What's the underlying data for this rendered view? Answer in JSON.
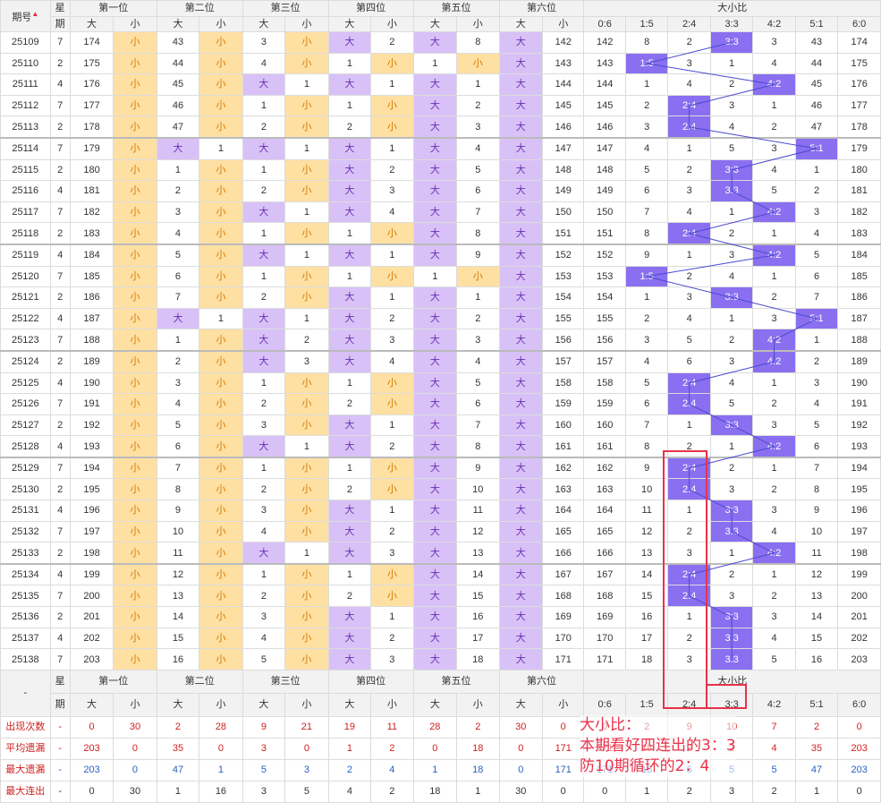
{
  "header": {
    "period_label": "期号",
    "week_label_top": "星",
    "week_label_bottom": "期",
    "groups": [
      "第一位",
      "第二位",
      "第三位",
      "第四位",
      "第五位",
      "第六位",
      "大小比"
    ],
    "big": "大",
    "small": "小",
    "ratios": [
      "0:6",
      "1:5",
      "2:4",
      "3:3",
      "4:2",
      "5:1",
      "6:0"
    ],
    "dash": "-"
  },
  "colors": {
    "big_bg": "#d8c1f7",
    "small_bg": "#ffe0a3",
    "hit_bg": "#8a6ff0",
    "note": "#e8324a"
  },
  "rows": [
    {
      "p": "25109",
      "w": "7",
      "pos": [
        [
          "s",
          174
        ],
        [
          "s",
          43
        ],
        [
          "s",
          3
        ],
        [
          "b",
          2
        ],
        [
          "b",
          8
        ],
        [
          "b",
          142
        ]
      ],
      "r": {
        "v": 3,
        "miss": [
          142,
          8,
          2,
          0,
          3,
          43,
          174
        ]
      }
    },
    {
      "p": "25110",
      "w": "2",
      "pos": [
        [
          "s",
          175
        ],
        [
          "s",
          44
        ],
        [
          "s",
          4
        ],
        [
          "s",
          1
        ],
        [
          "s",
          1
        ],
        [
          "b",
          143
        ]
      ],
      "r": {
        "v": 1,
        "miss": [
          143,
          0,
          3,
          1,
          4,
          44,
          175
        ]
      }
    },
    {
      "p": "25111",
      "w": "4",
      "pos": [
        [
          "s",
          176
        ],
        [
          "s",
          45
        ],
        [
          "b",
          1
        ],
        [
          "b",
          1
        ],
        [
          "b",
          1
        ],
        [
          "b",
          144
        ]
      ],
      "r": {
        "v": 4,
        "miss": [
          144,
          1,
          4,
          2,
          0,
          45,
          176
        ]
      }
    },
    {
      "p": "25112",
      "w": "7",
      "pos": [
        [
          "s",
          177
        ],
        [
          "s",
          46
        ],
        [
          "s",
          1
        ],
        [
          "s",
          1
        ],
        [
          "b",
          2
        ],
        [
          "b",
          145
        ]
      ],
      "r": {
        "v": 2,
        "miss": [
          145,
          2,
          0,
          3,
          1,
          46,
          177
        ]
      }
    },
    {
      "p": "25113",
      "w": "2",
      "pos": [
        [
          "s",
          178
        ],
        [
          "s",
          47
        ],
        [
          "s",
          2
        ],
        [
          "s",
          2
        ],
        [
          "b",
          3
        ],
        [
          "b",
          146
        ]
      ],
      "r": {
        "v": 2,
        "miss": [
          146,
          3,
          0,
          4,
          2,
          47,
          178
        ]
      }
    },
    {
      "p": "25114",
      "w": "7",
      "pos": [
        [
          "s",
          179
        ],
        [
          "b",
          1
        ],
        [
          "b",
          1
        ],
        [
          "b",
          1
        ],
        [
          "b",
          4
        ],
        [
          "b",
          147
        ]
      ],
      "r": {
        "v": 5,
        "miss": [
          147,
          4,
          1,
          5,
          3,
          0,
          179
        ]
      }
    },
    {
      "p": "25115",
      "w": "2",
      "pos": [
        [
          "s",
          180
        ],
        [
          "s",
          1
        ],
        [
          "s",
          1
        ],
        [
          "b",
          2
        ],
        [
          "b",
          5
        ],
        [
          "b",
          148
        ]
      ],
      "r": {
        "v": 3,
        "miss": [
          148,
          5,
          2,
          0,
          4,
          1,
          180
        ]
      }
    },
    {
      "p": "25116",
      "w": "4",
      "pos": [
        [
          "s",
          181
        ],
        [
          "s",
          2
        ],
        [
          "s",
          2
        ],
        [
          "b",
          3
        ],
        [
          "b",
          6
        ],
        [
          "b",
          149
        ]
      ],
      "r": {
        "v": 3,
        "miss": [
          149,
          6,
          3,
          0,
          5,
          2,
          181
        ]
      }
    },
    {
      "p": "25117",
      "w": "7",
      "pos": [
        [
          "s",
          182
        ],
        [
          "s",
          3
        ],
        [
          "b",
          1
        ],
        [
          "b",
          4
        ],
        [
          "b",
          7
        ],
        [
          "b",
          150
        ]
      ],
      "r": {
        "v": 4,
        "miss": [
          150,
          7,
          4,
          1,
          0,
          3,
          182
        ]
      }
    },
    {
      "p": "25118",
      "w": "2",
      "pos": [
        [
          "s",
          183
        ],
        [
          "s",
          4
        ],
        [
          "s",
          1
        ],
        [
          "s",
          1
        ],
        [
          "b",
          8
        ],
        [
          "b",
          151
        ]
      ],
      "r": {
        "v": 2,
        "miss": [
          151,
          8,
          0,
          2,
          1,
          4,
          183
        ]
      }
    },
    {
      "p": "25119",
      "w": "4",
      "pos": [
        [
          "s",
          184
        ],
        [
          "s",
          5
        ],
        [
          "b",
          1
        ],
        [
          "b",
          1
        ],
        [
          "b",
          9
        ],
        [
          "b",
          152
        ]
      ],
      "r": {
        "v": 4,
        "miss": [
          152,
          9,
          1,
          3,
          0,
          5,
          184
        ]
      }
    },
    {
      "p": "25120",
      "w": "7",
      "pos": [
        [
          "s",
          185
        ],
        [
          "s",
          6
        ],
        [
          "s",
          1
        ],
        [
          "s",
          1
        ],
        [
          "s",
          1
        ],
        [
          "b",
          153
        ]
      ],
      "r": {
        "v": 1,
        "miss": [
          153,
          0,
          2,
          4,
          1,
          6,
          185
        ]
      }
    },
    {
      "p": "25121",
      "w": "2",
      "pos": [
        [
          "s",
          186
        ],
        [
          "s",
          7
        ],
        [
          "s",
          2
        ],
        [
          "b",
          1
        ],
        [
          "b",
          1
        ],
        [
          "b",
          154
        ]
      ],
      "r": {
        "v": 3,
        "miss": [
          154,
          1,
          3,
          0,
          2,
          7,
          186
        ]
      }
    },
    {
      "p": "25122",
      "w": "4",
      "pos": [
        [
          "s",
          187
        ],
        [
          "b",
          1
        ],
        [
          "b",
          1
        ],
        [
          "b",
          2
        ],
        [
          "b",
          2
        ],
        [
          "b",
          155
        ]
      ],
      "r": {
        "v": 5,
        "miss": [
          155,
          2,
          4,
          1,
          3,
          0,
          187
        ]
      }
    },
    {
      "p": "25123",
      "w": "7",
      "pos": [
        [
          "s",
          188
        ],
        [
          "s",
          1
        ],
        [
          "b",
          2
        ],
        [
          "b",
          3
        ],
        [
          "b",
          3
        ],
        [
          "b",
          156
        ]
      ],
      "r": {
        "v": 4,
        "miss": [
          156,
          3,
          5,
          2,
          0,
          1,
          188
        ]
      }
    },
    {
      "p": "25124",
      "w": "2",
      "pos": [
        [
          "s",
          189
        ],
        [
          "s",
          2
        ],
        [
          "b",
          3
        ],
        [
          "b",
          4
        ],
        [
          "b",
          4
        ],
        [
          "b",
          157
        ]
      ],
      "r": {
        "v": 4,
        "miss": [
          157,
          4,
          6,
          3,
          0,
          2,
          189
        ]
      }
    },
    {
      "p": "25125",
      "w": "4",
      "pos": [
        [
          "s",
          190
        ],
        [
          "s",
          3
        ],
        [
          "s",
          1
        ],
        [
          "s",
          1
        ],
        [
          "b",
          5
        ],
        [
          "b",
          158
        ]
      ],
      "r": {
        "v": 2,
        "miss": [
          158,
          5,
          0,
          4,
          1,
          3,
          190
        ]
      }
    },
    {
      "p": "25126",
      "w": "7",
      "pos": [
        [
          "s",
          191
        ],
        [
          "s",
          4
        ],
        [
          "s",
          2
        ],
        [
          "s",
          2
        ],
        [
          "b",
          6
        ],
        [
          "b",
          159
        ]
      ],
      "r": {
        "v": 2,
        "miss": [
          159,
          6,
          0,
          5,
          2,
          4,
          191
        ]
      }
    },
    {
      "p": "25127",
      "w": "2",
      "pos": [
        [
          "s",
          192
        ],
        [
          "s",
          5
        ],
        [
          "s",
          3
        ],
        [
          "b",
          1
        ],
        [
          "b",
          7
        ],
        [
          "b",
          160
        ]
      ],
      "r": {
        "v": 3,
        "miss": [
          160,
          7,
          1,
          0,
          3,
          5,
          192
        ]
      }
    },
    {
      "p": "25128",
      "w": "4",
      "pos": [
        [
          "s",
          193
        ],
        [
          "s",
          6
        ],
        [
          "b",
          1
        ],
        [
          "b",
          2
        ],
        [
          "b",
          8
        ],
        [
          "b",
          161
        ]
      ],
      "r": {
        "v": 4,
        "miss": [
          161,
          8,
          2,
          1,
          0,
          6,
          193
        ]
      }
    },
    {
      "p": "25129",
      "w": "7",
      "pos": [
        [
          "s",
          194
        ],
        [
          "s",
          7
        ],
        [
          "s",
          1
        ],
        [
          "s",
          1
        ],
        [
          "b",
          9
        ],
        [
          "b",
          162
        ]
      ],
      "r": {
        "v": 2,
        "miss": [
          162,
          9,
          0,
          2,
          1,
          7,
          194
        ]
      }
    },
    {
      "p": "25130",
      "w": "2",
      "pos": [
        [
          "s",
          195
        ],
        [
          "s",
          8
        ],
        [
          "s",
          2
        ],
        [
          "s",
          2
        ],
        [
          "b",
          10
        ],
        [
          "b",
          163
        ]
      ],
      "r": {
        "v": 2,
        "miss": [
          163,
          10,
          0,
          3,
          2,
          8,
          195
        ]
      }
    },
    {
      "p": "25131",
      "w": "4",
      "pos": [
        [
          "s",
          196
        ],
        [
          "s",
          9
        ],
        [
          "s",
          3
        ],
        [
          "b",
          1
        ],
        [
          "b",
          11
        ],
        [
          "b",
          164
        ]
      ],
      "r": {
        "v": 3,
        "miss": [
          164,
          11,
          1,
          0,
          3,
          9,
          196
        ]
      }
    },
    {
      "p": "25132",
      "w": "7",
      "pos": [
        [
          "s",
          197
        ],
        [
          "s",
          10
        ],
        [
          "s",
          4
        ],
        [
          "b",
          2
        ],
        [
          "b",
          12
        ],
        [
          "b",
          165
        ]
      ],
      "r": {
        "v": 3,
        "miss": [
          165,
          12,
          2,
          0,
          4,
          10,
          197
        ]
      }
    },
    {
      "p": "25133",
      "w": "2",
      "pos": [
        [
          "s",
          198
        ],
        [
          "s",
          11
        ],
        [
          "b",
          1
        ],
        [
          "b",
          3
        ],
        [
          "b",
          13
        ],
        [
          "b",
          166
        ]
      ],
      "r": {
        "v": 4,
        "miss": [
          166,
          13,
          3,
          1,
          0,
          11,
          198
        ]
      }
    },
    {
      "p": "25134",
      "w": "4",
      "pos": [
        [
          "s",
          199
        ],
        [
          "s",
          12
        ],
        [
          "s",
          1
        ],
        [
          "s",
          1
        ],
        [
          "b",
          14
        ],
        [
          "b",
          167
        ]
      ],
      "r": {
        "v": 2,
        "miss": [
          167,
          14,
          0,
          2,
          1,
          12,
          199
        ]
      }
    },
    {
      "p": "25135",
      "w": "7",
      "pos": [
        [
          "s",
          200
        ],
        [
          "s",
          13
        ],
        [
          "s",
          2
        ],
        [
          "s",
          2
        ],
        [
          "b",
          15
        ],
        [
          "b",
          168
        ]
      ],
      "r": {
        "v": 2,
        "miss": [
          168,
          15,
          0,
          3,
          2,
          13,
          200
        ]
      }
    },
    {
      "p": "25136",
      "w": "2",
      "pos": [
        [
          "s",
          201
        ],
        [
          "s",
          14
        ],
        [
          "s",
          3
        ],
        [
          "b",
          1
        ],
        [
          "b",
          16
        ],
        [
          "b",
          169
        ]
      ],
      "r": {
        "v": 3,
        "miss": [
          169,
          16,
          1,
          0,
          3,
          14,
          201
        ]
      }
    },
    {
      "p": "25137",
      "w": "4",
      "pos": [
        [
          "s",
          202
        ],
        [
          "s",
          15
        ],
        [
          "s",
          4
        ],
        [
          "b",
          2
        ],
        [
          "b",
          17
        ],
        [
          "b",
          170
        ]
      ],
      "r": {
        "v": 3,
        "miss": [
          170,
          17,
          2,
          0,
          4,
          15,
          202
        ]
      }
    },
    {
      "p": "25138",
      "w": "7",
      "pos": [
        [
          "s",
          203
        ],
        [
          "s",
          16
        ],
        [
          "s",
          5
        ],
        [
          "b",
          3
        ],
        [
          "b",
          18
        ],
        [
          "b",
          171
        ]
      ],
      "r": {
        "v": 3,
        "miss": [
          171,
          18,
          3,
          0,
          5,
          16,
          203
        ]
      }
    }
  ],
  "stats": [
    {
      "label": "出现次数",
      "cls": "s-count",
      "vals": [
        "-",
        "0",
        "30",
        "2",
        "28",
        "9",
        "21",
        "19",
        "11",
        "28",
        "2",
        "30",
        "0",
        "0",
        "2",
        "9",
        "10",
        "7",
        "2",
        "0"
      ]
    },
    {
      "label": "平均遗漏",
      "cls": "s-avg",
      "vals": [
        "-",
        "203",
        "0",
        "35",
        "0",
        "3",
        "0",
        "1",
        "2",
        "0",
        "18",
        "0",
        "171",
        "171",
        "18",
        "2",
        "2",
        "4",
        "35",
        "203"
      ]
    },
    {
      "label": "最大遗漏",
      "cls": "s-maxmiss",
      "vals": [
        "-",
        "203",
        "0",
        "47",
        "1",
        "5",
        "3",
        "2",
        "4",
        "1",
        "18",
        "0",
        "171",
        "171",
        "18",
        "6",
        "5",
        "5",
        "47",
        "203"
      ]
    },
    {
      "label": "最大连出",
      "cls": "s-maxrun",
      "vals": [
        "-",
        "0",
        "30",
        "1",
        "16",
        "3",
        "5",
        "4",
        "2",
        "18",
        "1",
        "30",
        "0",
        "0",
        "1",
        "2",
        "3",
        "2",
        "1",
        "0"
      ]
    }
  ],
  "note": {
    "line1": "大小比：",
    "line2": "本期看好四连出的3：3",
    "line3": "防10期循环的2：4"
  }
}
